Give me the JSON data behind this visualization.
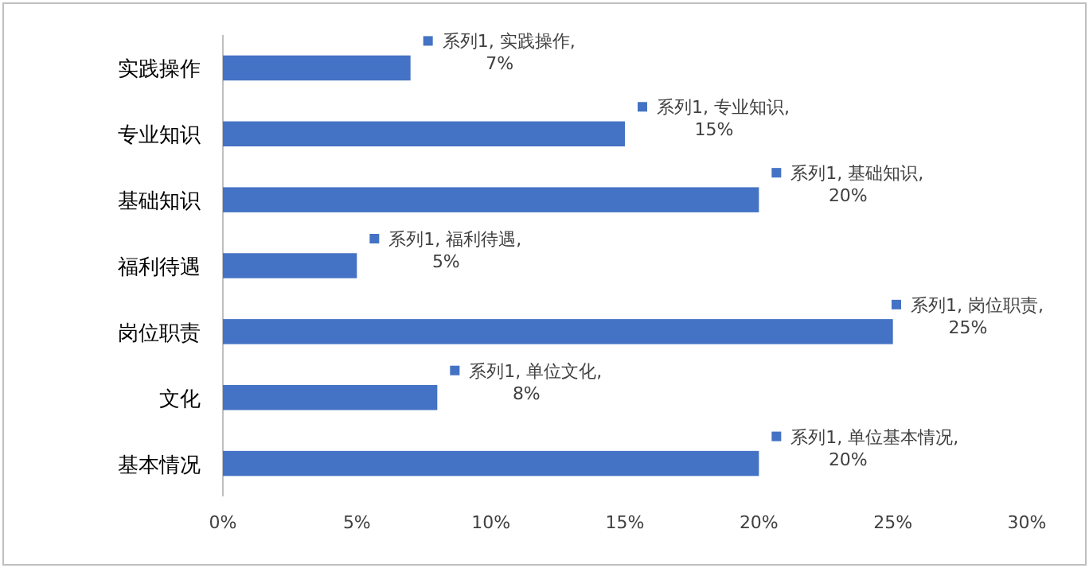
{
  "chart_data": {
    "type": "bar",
    "orientation": "horizontal",
    "categories": [
      "实践操作",
      "专业知识",
      "基础知识",
      "福利待遇",
      "岗位职责",
      "文化",
      "基本情况"
    ],
    "values": [
      7,
      15,
      20,
      5,
      25,
      8,
      20
    ],
    "color": "#4472c4",
    "value_labels": [
      "系列1, 实践操作, 7%",
      "系列1, 专业知识, 15%",
      "系列1, 基础知识, 20%",
      "系列1, 福利待遇, 5%",
      "系列1, 岗位职责, 25%",
      "系列1, 单位文化, 8%",
      "系列1, 单位基本情况, 20%"
    ],
    "xlim": [
      0,
      30
    ],
    "xticks": [
      {
        "value": 0,
        "label": "0%"
      },
      {
        "value": 5,
        "label": "5%"
      },
      {
        "value": 10,
        "label": "10%"
      },
      {
        "value": 15,
        "label": "15%"
      },
      {
        "value": 20,
        "label": "20%"
      },
      {
        "value": 25,
        "label": "25%"
      },
      {
        "value": 30,
        "label": "30%"
      }
    ]
  }
}
